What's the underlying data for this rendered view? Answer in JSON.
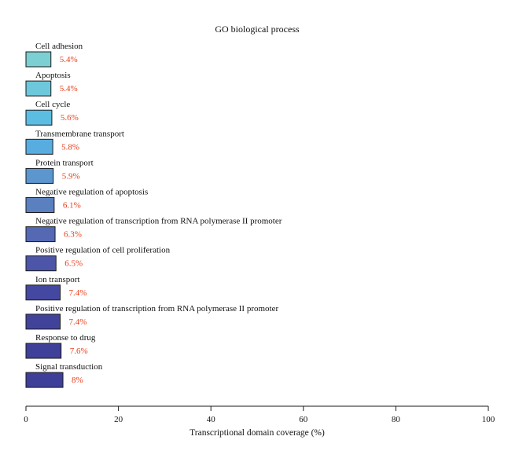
{
  "chart_data": {
    "type": "bar",
    "orientation": "horizontal",
    "title": "GO biological process",
    "xlabel": "Transcriptional domain coverage (%)",
    "ylabel": "",
    "xlim": [
      0,
      100
    ],
    "xticks": [
      0,
      20,
      40,
      60,
      80,
      100
    ],
    "grid": false,
    "categories": [
      "Cell adhesion",
      "Apoptosis",
      "Cell cycle",
      "Transmembrane transport",
      "Protein transport",
      "Negative regulation of apoptosis",
      "Negative regulation of transcription from RNA polymerase II promoter",
      "Positive regulation of cell proliferation",
      "Ion transport",
      "Positive regulation of transcription from RNA polymerase II promoter",
      "Response to drug",
      "Signal transduction"
    ],
    "values": [
      5.4,
      5.4,
      5.6,
      5.8,
      5.9,
      6.1,
      6.3,
      6.5,
      7.4,
      7.4,
      7.6,
      8
    ],
    "value_labels": [
      "5.4%",
      "5.4%",
      "5.6%",
      "5.8%",
      "5.9%",
      "6.1%",
      "6.3%",
      "6.5%",
      "7.4%",
      "7.4%",
      "7.6%",
      "8%"
    ],
    "colors": [
      "#7ccfd2",
      "#6ec8dc",
      "#5cbde2",
      "#58ade0",
      "#5b96cf",
      "#5a80c0",
      "#5468b4",
      "#4c55a8",
      "#4548a0",
      "#41439b",
      "#3f4099",
      "#3e3f98"
    ],
    "value_label_color": "#e8401c"
  }
}
